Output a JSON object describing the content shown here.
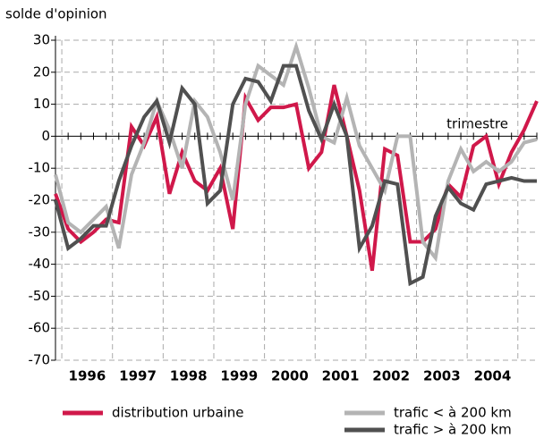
{
  "chart_data": {
    "type": "line",
    "y_axis_label": "solde d'opinion",
    "x_axis_label": "trimestre",
    "categories": [
      null,
      null,
      "1996",
      null,
      null,
      null,
      "1997",
      null,
      null,
      null,
      "1998",
      null,
      null,
      null,
      "1999",
      null,
      null,
      null,
      "2000",
      null,
      null,
      null,
      "2001",
      null,
      null,
      null,
      "2002",
      null,
      null,
      null,
      "2003",
      null,
      null,
      null,
      "2004",
      null,
      null,
      null,
      null
    ],
    "series": [
      {
        "name": "distribution urbaine",
        "color": "#d0184a",
        "values": [
          -18,
          -29,
          -33,
          -30,
          -26,
          -27,
          3,
          -3,
          6,
          -18,
          -5,
          -14,
          -17,
          -10,
          -29,
          12,
          5,
          9,
          9,
          10,
          -10,
          -5,
          16,
          0,
          -17,
          -42,
          -4,
          -6,
          -33,
          -33,
          -29,
          -15,
          -19,
          -3,
          0,
          -15,
          -5,
          2,
          11
        ]
      },
      {
        "name": "trafic < à 200 km",
        "color": "#b4b4b4",
        "values": [
          -12,
          -27,
          -30,
          -26,
          -22,
          -35,
          -12,
          -2,
          11,
          2,
          -10,
          11,
          6,
          -5,
          -20,
          10,
          22,
          19,
          16,
          28,
          15,
          0,
          -2,
          12,
          -3,
          -10,
          -17,
          0,
          0,
          -33,
          -38,
          -14,
          -4,
          -11,
          -8,
          -11,
          -8,
          -2,
          -1
        ]
      },
      {
        "name": "trafic > à 200 km",
        "color": "#505050",
        "values": [
          -20,
          -35,
          -32,
          -28,
          -28,
          -14,
          -3,
          6,
          11,
          -2,
          15,
          10,
          -21,
          -17,
          10,
          18,
          17,
          11,
          22,
          22,
          8,
          -1,
          10,
          0,
          -35,
          -28,
          -14,
          -15,
          -46,
          -44,
          -25,
          -16,
          -21,
          -23,
          -15,
          -14,
          -13,
          -14,
          -14
        ]
      }
    ],
    "ylim": [
      -70,
      30
    ],
    "yticks": [
      30,
      20,
      10,
      0,
      -10,
      -20,
      -30,
      -40,
      -50,
      -60,
      -70
    ],
    "grid": true
  }
}
